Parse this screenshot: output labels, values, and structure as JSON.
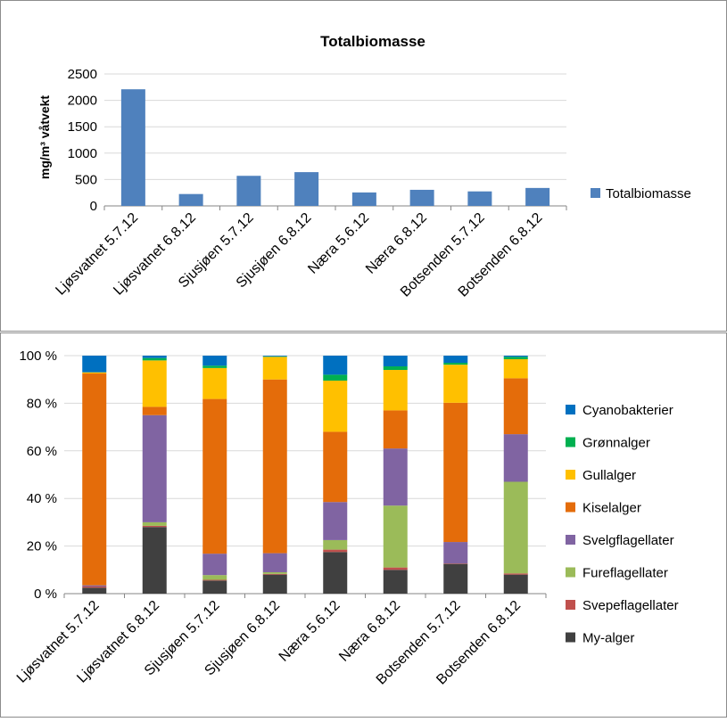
{
  "chart_data": [
    {
      "type": "bar",
      "title": "Totalbiomasse",
      "xlabel": "",
      "ylabel": "mg/m³ våtvekt",
      "ylim": [
        0,
        2500
      ],
      "yticks": [
        "0",
        "500",
        "1000",
        "1500",
        "2000",
        "2500"
      ],
      "grid": true,
      "legend_position": "right",
      "categories": [
        "Ljøsvatnet 5.7.12",
        "Ljøsvatnet 6.8.12",
        "Sjusjøen 5.7.12",
        "Sjusjøen 6.8.12",
        "Næra 5.6.12",
        "Næra 6.8.12",
        "Botsenden 5.7.12",
        "Botsenden 6.8.12"
      ],
      "series": [
        {
          "name": "Totalbiomasse",
          "color": "#4f81bd",
          "values": [
            2210,
            225,
            570,
            640,
            255,
            305,
            275,
            340
          ]
        }
      ]
    },
    {
      "type": "bar",
      "stacked": true,
      "percent": true,
      "title": "",
      "xlabel": "",
      "ylabel": "",
      "ylim": [
        0,
        100
      ],
      "yticks": [
        "0 %",
        "20 %",
        "40 %",
        "60 %",
        "80 %",
        "100 %"
      ],
      "grid": true,
      "legend_position": "right",
      "categories": [
        "Ljøsvatnet 5.7.12",
        "Ljøsvatnet 6.8.12",
        "Sjusjøen 5.7.12",
        "Sjusjøen 6.8.12",
        "Næra 5.6.12",
        "Næra 6.8.12",
        "Botsenden 5.7.12",
        "Botsenden 6.8.12"
      ],
      "series": [
        {
          "name": "My-alger",
          "color": "#404040",
          "values": [
            2.5,
            28,
            5.5,
            8,
            17.5,
            10,
            12.5,
            8
          ]
        },
        {
          "name": "Svepeflagellater",
          "color": "#c0504d",
          "values": [
            0.5,
            0.5,
            0.3,
            0.3,
            1,
            1,
            0.2,
            0.5
          ]
        },
        {
          "name": "Fureflagellater",
          "color": "#9bbb59",
          "values": [
            0,
            1.5,
            2,
            0.7,
            4,
            26,
            0,
            38.5
          ]
        },
        {
          "name": "Svelgflagellater",
          "color": "#8064a2",
          "values": [
            0.5,
            45,
            9,
            8,
            16,
            24,
            9,
            20
          ]
        },
        {
          "name": "Kiselalger",
          "color": "#e46c0a",
          "values": [
            89,
            3.5,
            65,
            73,
            29.5,
            16,
            58.5,
            23.5
          ]
        },
        {
          "name": "Gullalger",
          "color": "#ffc000",
          "values": [
            0.5,
            19.5,
            13,
            9.5,
            21.5,
            17,
            16,
            8
          ]
        },
        {
          "name": "Grønnalger",
          "color": "#00b050",
          "values": [
            0,
            1,
            1,
            0.2,
            2.5,
            1.5,
            0.8,
            1
          ]
        },
        {
          "name": "Cyanobakterier",
          "color": "#0070c0",
          "values": [
            7,
            1,
            4.2,
            0.3,
            8,
            4.5,
            3,
            0.5
          ]
        }
      ],
      "legend_order": [
        "Cyanobakterier",
        "Grønnalger",
        "Gullalger",
        "Kiselalger",
        "Svelgflagellater",
        "Fureflagellater",
        "Svepeflagellater",
        "My-alger"
      ]
    }
  ]
}
